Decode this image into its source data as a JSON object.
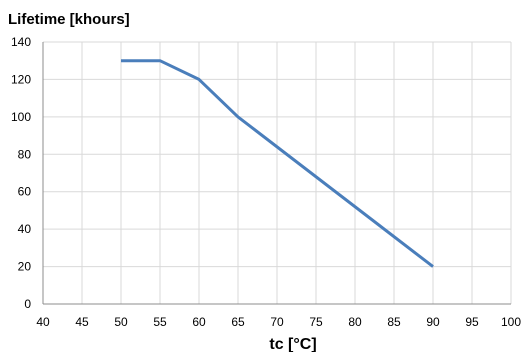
{
  "chart_data": {
    "type": "line",
    "title": "",
    "ylabel": "Lifetime [khours]",
    "xlabel": "tc [°C]",
    "xlim": [
      40,
      100
    ],
    "ylim": [
      0,
      140
    ],
    "x_ticks": [
      40,
      45,
      50,
      55,
      60,
      65,
      70,
      75,
      80,
      85,
      90,
      95,
      100
    ],
    "y_ticks": [
      0,
      20,
      40,
      60,
      80,
      100,
      120,
      140
    ],
    "grid": true,
    "legend": "none",
    "series": [
      {
        "color": "#4a7ebb",
        "x": [
          50,
          55,
          60,
          65,
          90
        ],
        "y": [
          130,
          130,
          120,
          100,
          20
        ]
      }
    ]
  }
}
